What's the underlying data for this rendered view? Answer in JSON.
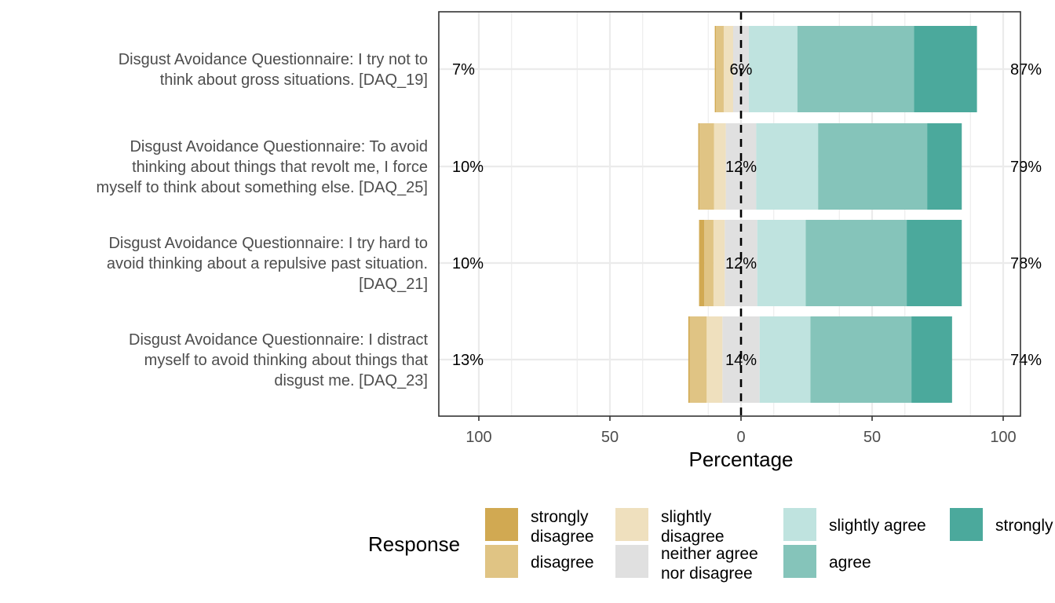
{
  "chart_data": {
    "type": "bar",
    "subtype": "diverging-stacked-likert",
    "xlabel": "Percentage",
    "xlim": [
      -100,
      100
    ],
    "x_ticks": [
      -100,
      -50,
      0,
      50,
      100
    ],
    "x_tick_labels": [
      "100",
      "50",
      "0",
      "50",
      "100"
    ],
    "legend_title": "Response",
    "legend_position": "bottom",
    "levels": [
      {
        "name": "strongly disagree",
        "label_lines": [
          "strongly",
          "disagree"
        ],
        "color": "#D1A952"
      },
      {
        "name": "disagree",
        "label_lines": [
          "disagree"
        ],
        "color": "#E0C484"
      },
      {
        "name": "slightly disagree",
        "label_lines": [
          "slightly",
          "disagree"
        ],
        "color": "#EFE0BE"
      },
      {
        "name": "neither agree nor disagree",
        "label_lines": [
          "neither agree",
          "nor disagree"
        ],
        "color": "#E0E0E0"
      },
      {
        "name": "slightly agree",
        "label_lines": [
          "slightly agree"
        ],
        "color": "#BFE3DF"
      },
      {
        "name": "agree",
        "label_lines": [
          "agree"
        ],
        "color": "#85C4BA"
      },
      {
        "name": "strongly agree",
        "label_lines": [
          "strongly agree"
        ],
        "color": "#4BA99C"
      }
    ],
    "items": [
      {
        "label_lines": [
          "Disgust Avoidance Questionnaire: I try not to",
          "think about gross situations. [DAQ_19]"
        ],
        "values": [
          0.5,
          2.9,
          3.6,
          6.0,
          18.5,
          44.5,
          24.0
        ],
        "left_label": "7%",
        "center_label": "6%",
        "right_label": "87%"
      },
      {
        "label_lines": [
          "Disgust Avoidance Questionnaire: To avoid",
          "thinking about things that revolt me, I force",
          "myself to think about something else. [DAQ_25]"
        ],
        "values": [
          0.5,
          5.5,
          4.5,
          11.6,
          23.6,
          41.6,
          13.2
        ],
        "left_label": "10%",
        "center_label": "12%",
        "right_label": "79%"
      },
      {
        "label_lines": [
          "Disgust Avoidance Questionnaire: I try hard to",
          "avoid thinking about a repulsive past situation.",
          "[DAQ_21]"
        ],
        "values": [
          2.0,
          3.5,
          4.3,
          12.4,
          18.5,
          38.5,
          21.0
        ],
        "left_label": "10%",
        "center_label": "12%",
        "right_label": "78%"
      },
      {
        "label_lines": [
          "Disgust Avoidance Questionnaire: I distract",
          "myself to avoid thinking about things that",
          "disgust me. [DAQ_23]"
        ],
        "values": [
          0.5,
          6.5,
          6.0,
          14.2,
          19.4,
          38.5,
          15.5
        ],
        "left_label": "13%",
        "center_label": "14%",
        "right_label": "74%"
      }
    ]
  }
}
